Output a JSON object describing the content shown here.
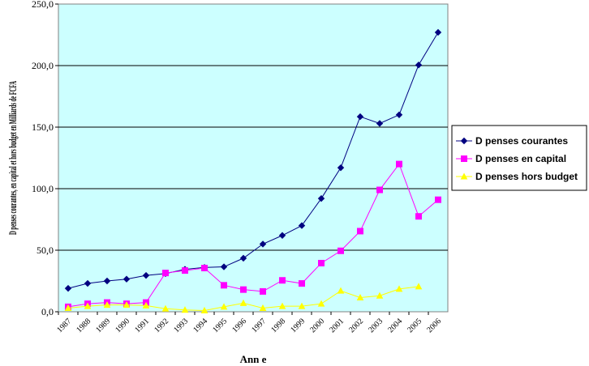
{
  "chart_data": {
    "type": "line",
    "xlabel": "Ann  e",
    "ylabel": "D  penses courantes, en capital et hors budget en Milliards de FCFA",
    "ylim": [
      0,
      250
    ],
    "y_ticks": [
      "0,0",
      "50,0",
      "100,0",
      "150,0",
      "200,0",
      "250,0"
    ],
    "categories": [
      "1987",
      "1988",
      "1989",
      "1990",
      "1991",
      "1992",
      "1993",
      "1994",
      "1995",
      "1996",
      "1997",
      "1998",
      "1999",
      "2000",
      "2001",
      "2002",
      "2003",
      "2004",
      "2005",
      "2006"
    ],
    "grid": "horizontal",
    "plot_background": "#ccffff",
    "legend_position": "right",
    "series": [
      {
        "name": "D  penses courantes",
        "color": "#000080",
        "marker": "diamond",
        "values": [
          19,
          23,
          25,
          26.5,
          29.5,
          31,
          34.5,
          36,
          36.5,
          43.5,
          55,
          62,
          70,
          92,
          117,
          158.5,
          153,
          160,
          200.5,
          227
        ]
      },
      {
        "name": "D  penses en capital",
        "color": "#ff00ff",
        "marker": "square",
        "values": [
          4,
          6.5,
          7.5,
          6.5,
          7.5,
          31.5,
          33.5,
          35.5,
          21.5,
          18,
          16.5,
          25.5,
          23,
          39.5,
          49.5,
          65.5,
          99,
          120,
          77.5,
          91
        ]
      },
      {
        "name": "D  penses hors budget",
        "color": "#ffff00",
        "marker": "triangle",
        "values": [
          3,
          4.5,
          5.5,
          5.5,
          5,
          2.5,
          1.5,
          1,
          4,
          7,
          3,
          4.5,
          4.5,
          6.5,
          17,
          11.5,
          13,
          18.5,
          20.5,
          null
        ]
      }
    ]
  }
}
